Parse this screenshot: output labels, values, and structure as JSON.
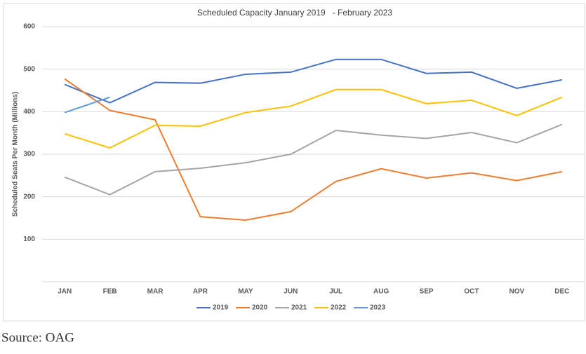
{
  "chart_data": {
    "type": "line",
    "title": "Scheduled Capacity January 2019   - February 2023",
    "y_label": "Scheduled Seats Per Month (Millions)",
    "categories": [
      "JAN",
      "FEB",
      "MAR",
      "APR",
      "MAY",
      "JUN",
      "JUL",
      "AUG",
      "SEP",
      "OCT",
      "NOV",
      "DEC"
    ],
    "series": [
      {
        "name": "2019",
        "color": "#4472c4",
        "values": [
          464,
          421,
          469,
          467,
          488,
          493,
          523,
          523,
          490,
          493,
          455,
          475
        ]
      },
      {
        "name": "2020",
        "color": "#ed7d31",
        "values": [
          477,
          403,
          381,
          153,
          145,
          165,
          236,
          266,
          244,
          256,
          238,
          259
        ]
      },
      {
        "name": "2021",
        "color": "#a5a5a5",
        "values": [
          246,
          205,
          259,
          267,
          280,
          300,
          356,
          345,
          337,
          351,
          327,
          370
        ]
      },
      {
        "name": "2022",
        "color": "#ffc000",
        "values": [
          348,
          315,
          368,
          366,
          398,
          413,
          452,
          452,
          419,
          427,
          391,
          434
        ]
      },
      {
        "name": "2023",
        "color": "#5b9bd5",
        "values": [
          398,
          434,
          null,
          null,
          null,
          null,
          null,
          null,
          null,
          null,
          null,
          null
        ]
      }
    ],
    "ylim": [
      0,
      600
    ],
    "yticks": [
      100,
      200,
      300,
      400,
      500,
      600
    ],
    "grid": true,
    "legend": "bottom"
  },
  "source": "Source: OAG"
}
